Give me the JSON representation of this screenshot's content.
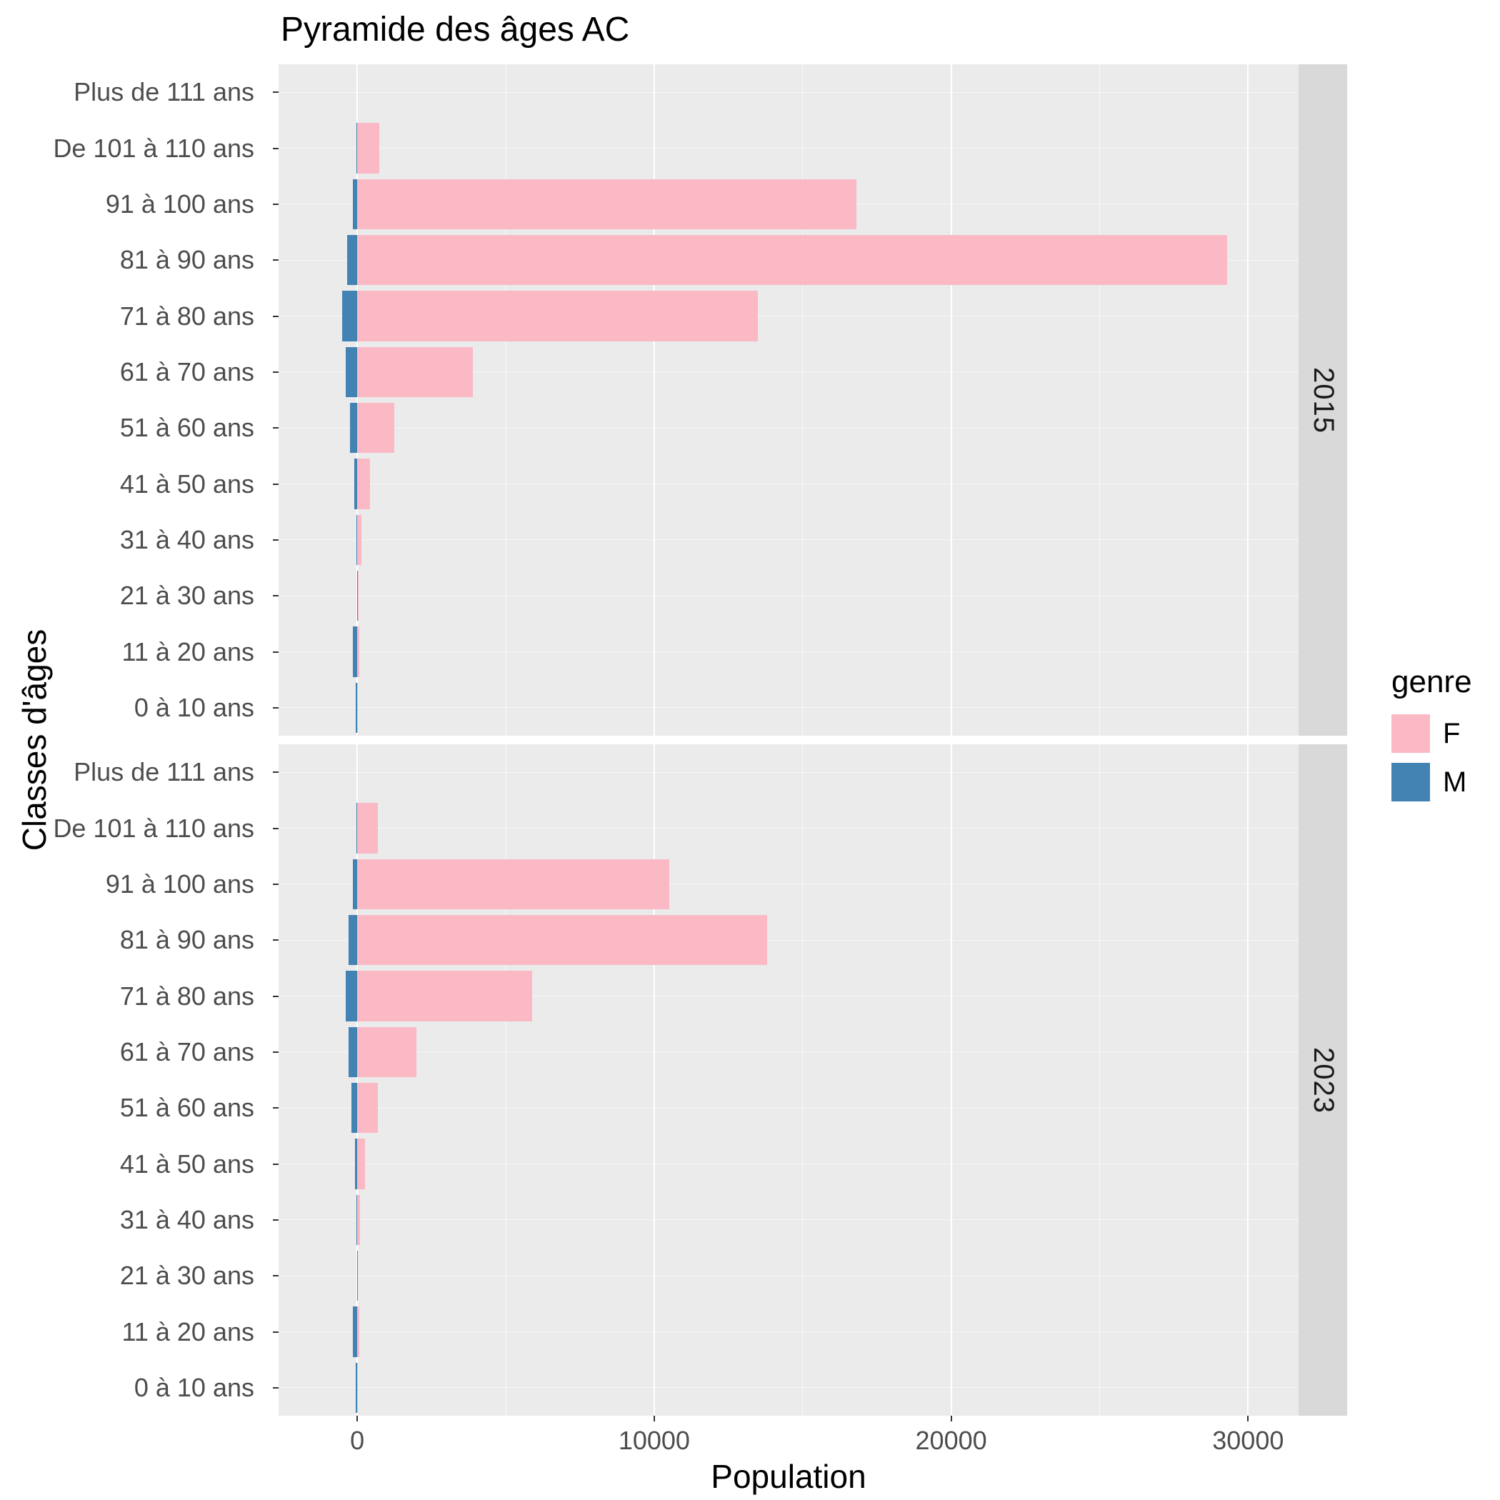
{
  "chart": {
    "title": "Pyramide des âges AC",
    "xlabel": "Population",
    "ylabel": "Classes d'âges",
    "legend_title": "genre"
  },
  "chart_data": {
    "type": "bar",
    "orientation": "horizontal",
    "legend_position": "right",
    "grid": true,
    "categories": [
      "Plus de 111 ans",
      "De 101 à 110 ans",
      "91 à 100 ans",
      "81 à 90 ans",
      "71 à 80 ans",
      "61 à 70 ans",
      "51 à 60 ans",
      "41 à 50 ans",
      "31 à 40 ans",
      "21 à 30 ans",
      "11 à 20 ans",
      "0 à 10 ans"
    ],
    "x_ticks": [
      0,
      10000,
      20000,
      30000
    ],
    "x_minor": [
      5000,
      15000,
      25000
    ],
    "xlim": [
      -2650,
      31700
    ],
    "colors": {
      "F": "#FBB9C6",
      "M": "#4383B4"
    },
    "legend": {
      "title": "genre",
      "entries": [
        "F",
        "M"
      ]
    },
    "facets": [
      {
        "label": "2015",
        "series": [
          {
            "name": "F",
            "values": [
              0,
              750,
              16800,
              29300,
              13500,
              3900,
              1250,
              430,
              130,
              50,
              60,
              25
            ]
          },
          {
            "name": "M",
            "values": [
              0,
              -30,
              -150,
              -350,
              -500,
              -400,
              -250,
              -100,
              -40,
              -15,
              -150,
              -60
            ]
          }
        ]
      },
      {
        "label": "2023",
        "series": [
          {
            "name": "F",
            "values": [
              0,
              700,
              10500,
              13800,
              5900,
              2000,
              700,
              250,
              100,
              30,
              60,
              25
            ]
          },
          {
            "name": "M",
            "values": [
              0,
              -20,
              -150,
              -300,
              -400,
              -300,
              -200,
              -80,
              -30,
              -10,
              -150,
              -60
            ]
          }
        ]
      }
    ]
  }
}
